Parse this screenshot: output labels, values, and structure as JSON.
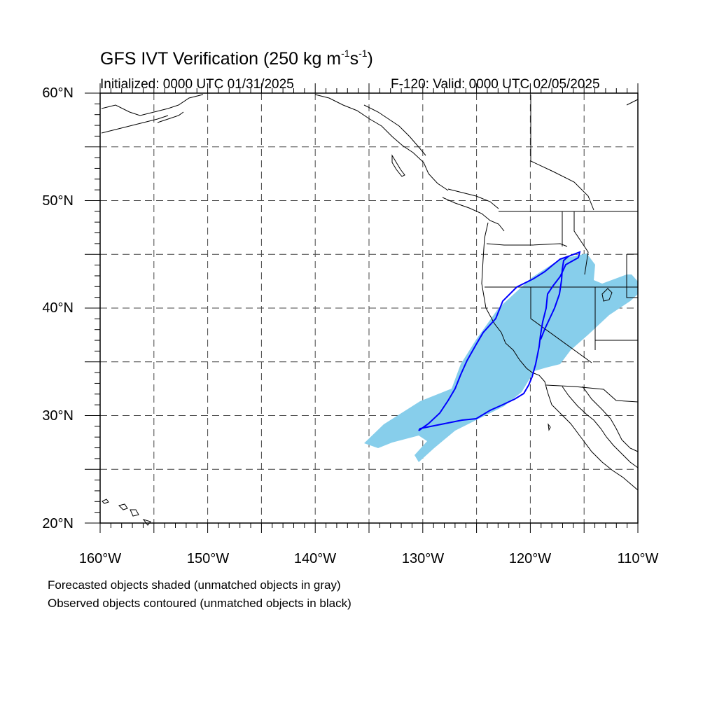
{
  "header": {
    "title_prefix": "GFS IVT Verification (250 kg m",
    "title_exp1": "-1",
    "title_mid": "s",
    "title_exp2": "-1",
    "title_suffix": ")",
    "initialized": "Initialized: 0000 UTC 01/31/2025",
    "valid": "F-120: Valid: 0000 UTC 02/05/2025"
  },
  "map": {
    "lon_range": [
      -160,
      -110
    ],
    "lat_range": [
      20,
      60
    ],
    "y_labels": [
      "60°N",
      "50°N",
      "40°N",
      "30°N",
      "20°N"
    ],
    "x_labels": [
      "160°W",
      "150°W",
      "140°W",
      "130°W",
      "120°W",
      "110°W"
    ],
    "grid": "dashed every 5 degrees",
    "forecast_color": "#87ceeb",
    "observed_color": "#0000ff"
  },
  "legend": {
    "line1": "Forecasted objects shaded (unmatched objects in gray)",
    "line2": "Observed objects contoured (unmatched objects in black)"
  }
}
